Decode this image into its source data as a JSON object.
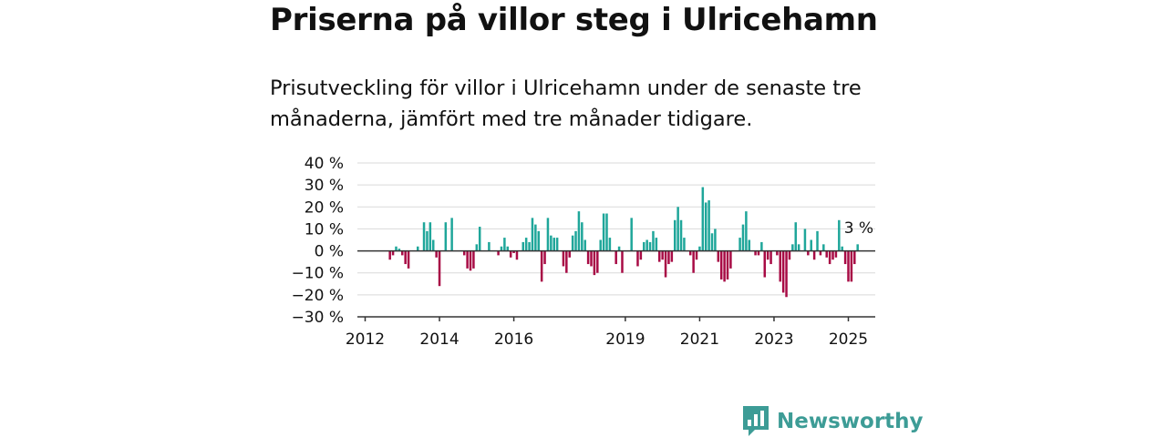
{
  "title": "Priserna på villor steg i Ulricehamn",
  "subtitle": "Prisutveckling för villor i Ulricehamn under de senaste tre månaderna, jämfört med tre månader tidigare.",
  "brand": {
    "name": "Newsworthy",
    "color": "#3d9c96",
    "icon": "newsworthy-logo-icon"
  },
  "colors": {
    "positive": "#1fa69a",
    "negative": "#a80b45",
    "grid": "#d9d9d9",
    "axis": "#333333"
  },
  "chart_data": {
    "type": "bar",
    "x_unit": "month",
    "x_start": "2012-09",
    "x_end": "2025-02",
    "xticks": [
      {
        "label": "2012",
        "x": "2012-01"
      },
      {
        "label": "2014",
        "x": "2014-01"
      },
      {
        "label": "2016",
        "x": "2016-01"
      },
      {
        "label": "2019",
        "x": "2019-01"
      },
      {
        "label": "2021",
        "x": "2021-01"
      },
      {
        "label": "2023",
        "x": "2023-01"
      },
      {
        "label": "2025",
        "x": "2025-01"
      }
    ],
    "ylim": [
      -30,
      40
    ],
    "yticks": [
      {
        "value": 40,
        "label": "40 %"
      },
      {
        "value": 30,
        "label": "30 %"
      },
      {
        "value": 20,
        "label": "20 %"
      },
      {
        "value": 10,
        "label": "10 %"
      },
      {
        "value": 0,
        "label": "0 %"
      },
      {
        "value": -10,
        "label": "−10 %"
      },
      {
        "value": -20,
        "label": "−20 %"
      },
      {
        "value": -30,
        "label": "−30 %"
      }
    ],
    "grid": true,
    "annotation": {
      "label": "3 %",
      "value": 3
    },
    "values": [
      -4,
      -2,
      2,
      1,
      -2,
      -6,
      -8,
      0,
      0,
      2,
      0,
      13,
      9,
      13,
      5,
      -3,
      -16,
      0,
      13,
      0,
      15,
      0,
      0,
      0,
      -2,
      -8,
      -9,
      -8,
      3,
      11,
      0,
      0,
      4,
      0,
      0,
      -2,
      2,
      6,
      2,
      -3,
      -1,
      -4,
      0,
      4,
      6,
      4,
      15,
      12,
      9,
      -14,
      -6,
      15,
      7,
      6,
      6,
      0,
      -7,
      -10,
      -3,
      7,
      9,
      18,
      13,
      5,
      -6,
      -7,
      -11,
      -10,
      5,
      17,
      17,
      6,
      0,
      -6,
      2,
      -10,
      0,
      0,
      15,
      0,
      -7,
      -4,
      4,
      5,
      4,
      9,
      6,
      -5,
      -4,
      -12,
      -6,
      -5,
      14,
      20,
      14,
      6,
      0,
      -2,
      -10,
      -4,
      2,
      29,
      22,
      23,
      8,
      10,
      -5,
      -13,
      -14,
      -13,
      -8,
      0,
      0,
      6,
      12,
      18,
      5,
      0,
      -2,
      -2,
      4,
      -12,
      -4,
      -6,
      0,
      -2,
      -14,
      -19,
      -21,
      -4,
      3,
      13,
      3,
      0,
      10,
      -2,
      5,
      -4,
      9,
      -2,
      3,
      -3,
      -6,
      -4,
      -3,
      14,
      2,
      -6,
      -14,
      -14,
      -6,
      3
    ]
  }
}
